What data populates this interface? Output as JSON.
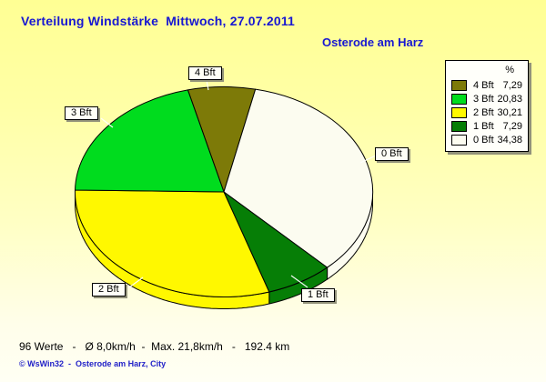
{
  "title": "Verteilung Windstärke  Mittwoch, 27.07.2011",
  "subtitle": "Osterode am Harz",
  "legend": {
    "header": "%"
  },
  "footer": {
    "stats": "96 Werte   -   Ø 8,0km/h  -  Max. 21,8km/h   -   192.4 km",
    "copyright": "© WsWin32  -  Osterode am Harz, City"
  },
  "colors": {
    "background_top": "#ffff94",
    "background_bottom": "#fffff4",
    "title_text": "#1717d2",
    "outline": "#000000",
    "label_box_bg": "#fffff6",
    "shadow": "#92927a",
    "leader_line": "#ffffff"
  },
  "chart_data": {
    "type": "pie",
    "title": "Verteilung Windstärke Mittwoch, 27.07.2011",
    "subtitle": "Osterode am Harz",
    "unit": "%",
    "legend_position": "top-right",
    "slices": [
      {
        "label": "4 Bft",
        "value": 7.29,
        "value_label": "7,29",
        "color": "#7d7a08"
      },
      {
        "label": "3 Bft",
        "value": 20.83,
        "value_label": "20,83",
        "color": "#00dc1e"
      },
      {
        "label": "2 Bft",
        "value": 30.21,
        "value_label": "30,21",
        "color": "#fff800"
      },
      {
        "label": "1 Bft",
        "value": 7.29,
        "value_label": "7,29",
        "color": "#067e06"
      },
      {
        "label": "0 Bft",
        "value": 34.38,
        "value_label": "34,38",
        "color": "#fcfcf0"
      }
    ],
    "layout_hints": {
      "style": "3d-pie",
      "start_angle_deg": 104,
      "direction": "clockwise",
      "draw_order": [
        "4 Bft",
        "0 Bft",
        "1 Bft",
        "2 Bft",
        "3 Bft"
      ],
      "grid": false
    }
  }
}
